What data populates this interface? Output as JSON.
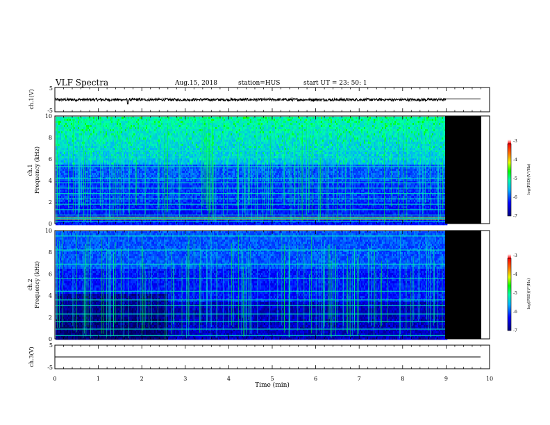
{
  "header": {
    "title": "VLF Spectra",
    "date": "Aug.15, 2018",
    "station": "station=HUS",
    "start": "start  UT  =   23: 50: 1"
  },
  "colorbar": {
    "label": "log(PSD)(V²/Hz)",
    "ticks": [
      "-3",
      "-4",
      "-5",
      "-6",
      "-7"
    ]
  },
  "chart_data": [
    {
      "type": "line",
      "panel": "ch1-waveform",
      "ylabel": "ch.1(V)",
      "ylim": [
        -5,
        5
      ],
      "yticks": [
        "5",
        "-5"
      ],
      "baseline": 0,
      "data_end_min": 9.0,
      "after_end_value": 0.3
    },
    {
      "type": "heatmap",
      "panel": "ch1-spectrogram",
      "ylabel_top": "ch.1",
      "ylabel": "Frequency (kHz)",
      "ylim": [
        0,
        10
      ],
      "yticks": [
        "0",
        "2",
        "4",
        "6",
        "8",
        "10"
      ],
      "data_end_min": 9.0,
      "bands_khz": [
        0.2,
        0.5,
        0.8,
        1.3,
        1.8,
        2.3,
        2.8,
        3.3,
        3.8,
        4.2,
        5.3,
        6.1,
        6.8
      ],
      "hot_bands_khz": [
        0.4,
        0.6
      ],
      "zlim": [
        -7,
        -3
      ]
    },
    {
      "type": "heatmap",
      "panel": "ch2-spectrogram",
      "ylabel_top": "ch.2",
      "ylabel": "Frequency (kHz)",
      "ylim": [
        0,
        10
      ],
      "yticks": [
        "0",
        "2",
        "4",
        "6",
        "8",
        "10"
      ],
      "data_end_min": 9.0,
      "bands_khz": [
        0.3,
        0.9,
        1.6,
        2.3,
        3.1,
        3.6,
        4.4,
        5.6,
        6.9,
        8.2,
        9.5
      ],
      "zlim": [
        -7,
        -3
      ]
    },
    {
      "type": "line",
      "panel": "ch3-waveform",
      "ylabel": "ch.3(V)",
      "ylim": [
        -5,
        5
      ],
      "yticks": [
        "5",
        "-5"
      ],
      "baseline": 0
    }
  ],
  "xaxis": {
    "label": "Time (min)",
    "xlim": [
      0,
      10
    ],
    "ticks": [
      "0",
      "1",
      "2",
      "3",
      "4",
      "5",
      "6",
      "7",
      "8",
      "9",
      "10"
    ]
  }
}
